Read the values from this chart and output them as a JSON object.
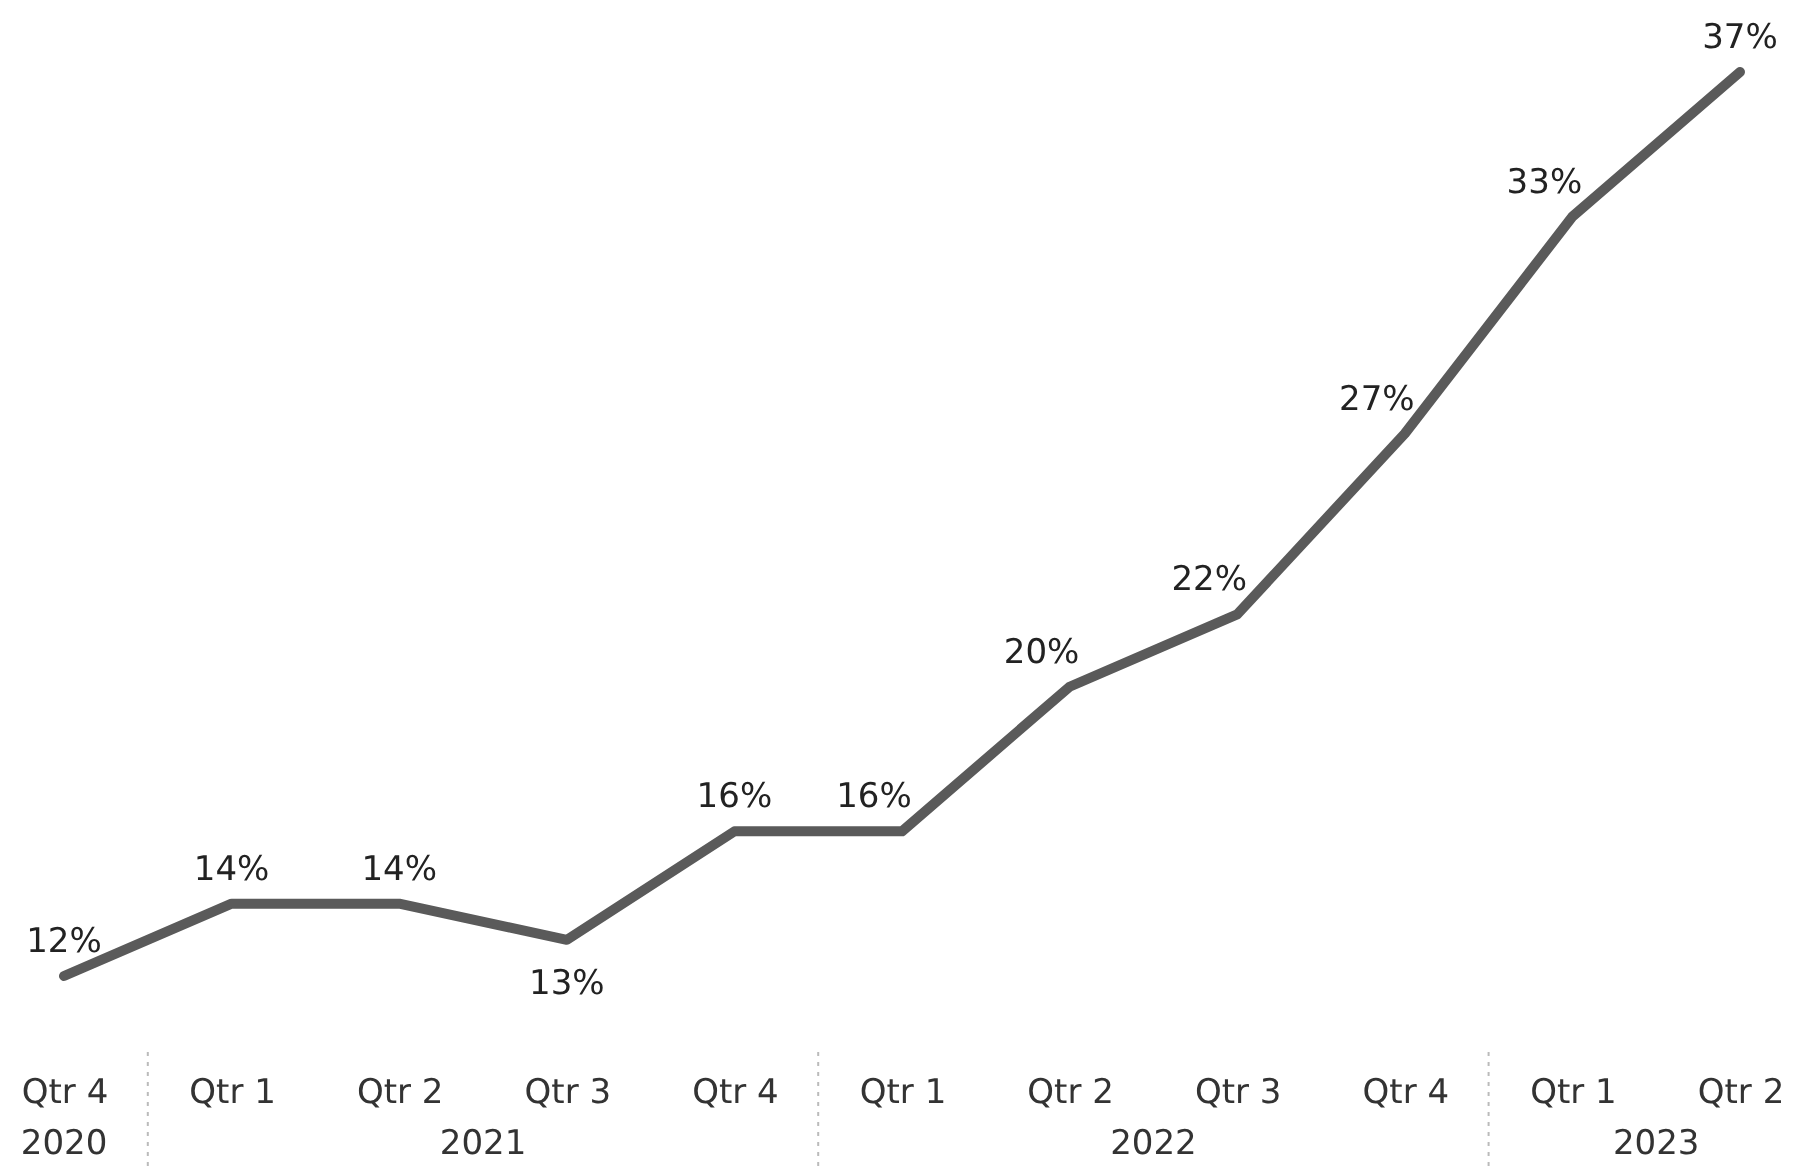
{
  "chart_data": {
    "type": "line",
    "categories": [
      "Qtr 4",
      "Qtr 1",
      "Qtr 2",
      "Qtr 3",
      "Qtr 4",
      "Qtr 1",
      "Qtr 2",
      "Qtr 3",
      "Qtr 4",
      "Qtr 1",
      "Qtr 2"
    ],
    "series": [
      {
        "color": "#5a5a5a",
        "values": [
          12,
          14,
          14,
          13,
          16,
          16,
          20,
          22,
          27,
          33,
          37
        ],
        "value_labels": [
          "12%",
          "14%",
          "14%",
          "13%",
          "16%",
          "16%",
          "20%",
          "22%",
          "27%",
          "33%",
          "37%"
        ]
      }
    ],
    "grid": false,
    "marker": "none",
    "line_style": "solid",
    "annotations": [
      "2020",
      "2021",
      "2022",
      "2023"
    ]
  }
}
